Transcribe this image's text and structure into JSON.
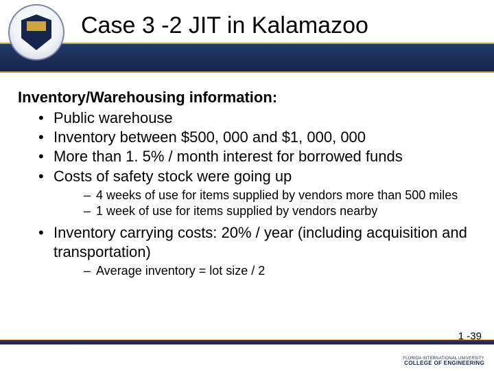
{
  "slide": {
    "title": "Case 3 -2 JIT in Kalamazoo",
    "heading": "Inventory/Warehousing information:",
    "bullets": [
      {
        "text": "Public warehouse"
      },
      {
        "text": "Inventory between $500, 000 and $1, 000, 000"
      },
      {
        "text": "More than 1. 5% / month interest for borrowed funds"
      },
      {
        "text": "Costs of safety stock were going up",
        "sub": [
          "4 weeks of use for items supplied by vendors more than 500 miles",
          "1 week of use for items supplied by vendors nearby"
        ]
      },
      {
        "text": "Inventory carrying costs: 20% / year (including acquisition and transportation)",
        "sub": [
          "Average inventory = lot size / 2"
        ]
      }
    ],
    "page_number": "1 -39",
    "footer": {
      "line1": "FLORIDA INTERNATIONAL UNIVERSITY",
      "line2": "COLLEGE OF ENGINEERING"
    }
  },
  "colors": {
    "band_dark": "#16244a",
    "band_light": "#233a6b",
    "gold": "#c9a647",
    "text": "#000000",
    "bg": "#ffffff"
  }
}
